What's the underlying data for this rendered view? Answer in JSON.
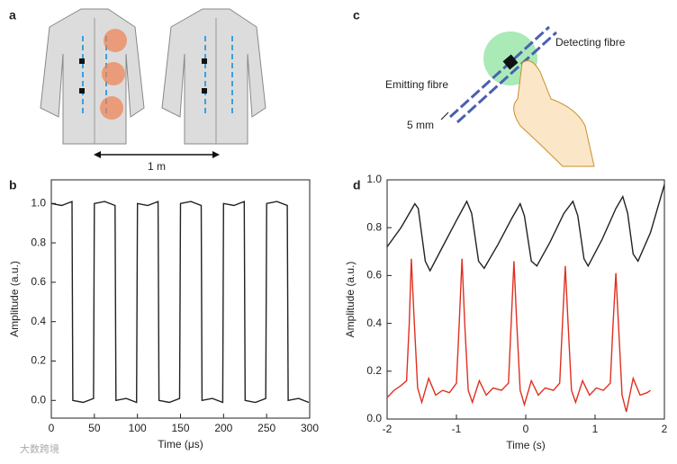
{
  "figure": {
    "panel_labels": [
      "a",
      "b",
      "c",
      "d"
    ],
    "scale_label": "1 m",
    "detecting_label": "Detecting fibre",
    "emitting_label": "Emitting fibre",
    "distance_label": "5 mm",
    "watermark": "大数跨境"
  },
  "chart_data": [
    {
      "type": "line",
      "xlabel": "Time (μs)",
      "ylabel": "Amplitude (a.u.)",
      "xlim": [
        0,
        300
      ],
      "xticks": [
        0,
        50,
        100,
        150,
        200,
        250,
        300
      ],
      "ylim": [
        -0.09,
        1.12
      ],
      "yticks": [
        {
          "value": 0,
          "label": "0.0"
        },
        0.2,
        0.4,
        0.6,
        0.8,
        {
          "value": 1,
          "label": "1.0"
        }
      ],
      "series": [
        {
          "color": "#222222",
          "x": [
            0,
            12,
            24,
            25,
            37,
            49,
            50,
            62,
            74,
            75,
            87,
            99,
            100,
            112,
            124,
            125,
            137,
            149,
            150,
            162,
            174,
            175,
            187,
            199,
            200,
            212,
            224,
            225,
            237,
            249,
            250,
            262,
            274,
            275,
            287,
            299
          ],
          "values": [
            1.0,
            0.99,
            1.01,
            0.0,
            -0.01,
            0.01,
            1.0,
            1.01,
            0.99,
            0.0,
            0.01,
            -0.01,
            1.0,
            0.99,
            1.01,
            0.0,
            -0.01,
            0.01,
            1.0,
            1.01,
            0.99,
            0.0,
            0.01,
            -0.01,
            1.0,
            0.99,
            1.01,
            0.0,
            -0.01,
            0.01,
            1.0,
            1.01,
            0.99,
            0.0,
            0.01,
            -0.01
          ]
        }
      ]
    },
    {
      "type": "line",
      "xlabel": "Time (s)",
      "ylabel": "Amplitude (a.u.)",
      "xlim": [
        -2,
        2
      ],
      "xticks": [
        -2,
        -1,
        0,
        1,
        2
      ],
      "ylim": [
        0,
        1
      ],
      "yticks": [
        {
          "value": 0,
          "label": "0.0"
        },
        0.2,
        0.4,
        0.6,
        0.8,
        {
          "value": 1,
          "label": "1.0"
        }
      ],
      "series": [
        {
          "color": "#222222",
          "x": [
            -2,
            -1.8,
            -1.6,
            -1.55,
            -1.45,
            -1.38,
            -1.2,
            -1.0,
            -0.85,
            -0.78,
            -0.68,
            -0.6,
            -0.4,
            -0.2,
            -0.08,
            -0.02,
            0.08,
            0.16,
            0.35,
            0.55,
            0.68,
            0.75,
            0.84,
            0.9,
            1.1,
            1.3,
            1.4,
            1.47,
            1.55,
            1.62,
            1.8,
            2.0
          ],
          "values": [
            0.72,
            0.8,
            0.9,
            0.88,
            0.66,
            0.62,
            0.72,
            0.83,
            0.91,
            0.86,
            0.66,
            0.63,
            0.73,
            0.84,
            0.9,
            0.85,
            0.66,
            0.64,
            0.74,
            0.86,
            0.91,
            0.85,
            0.67,
            0.64,
            0.75,
            0.88,
            0.93,
            0.86,
            0.69,
            0.66,
            0.78,
            0.98
          ]
        },
        {
          "color": "#e03020",
          "x": [
            -2,
            -1.9,
            -1.8,
            -1.72,
            -1.68,
            -1.65,
            -1.61,
            -1.56,
            -1.5,
            -1.4,
            -1.3,
            -1.2,
            -1.1,
            -1.0,
            -0.96,
            -0.92,
            -0.88,
            -0.83,
            -0.77,
            -0.67,
            -0.57,
            -0.47,
            -0.35,
            -0.25,
            -0.21,
            -0.17,
            -0.13,
            -0.08,
            -0.02,
            0.08,
            0.18,
            0.28,
            0.4,
            0.49,
            0.53,
            0.57,
            0.61,
            0.66,
            0.72,
            0.82,
            0.92,
            1.02,
            1.12,
            1.22,
            1.26,
            1.3,
            1.34,
            1.39,
            1.45,
            1.55,
            1.65,
            1.75,
            1.8
          ],
          "values": [
            0.09,
            0.12,
            0.14,
            0.16,
            0.4,
            0.67,
            0.42,
            0.13,
            0.07,
            0.17,
            0.1,
            0.12,
            0.11,
            0.15,
            0.4,
            0.67,
            0.4,
            0.12,
            0.07,
            0.16,
            0.1,
            0.13,
            0.12,
            0.15,
            0.4,
            0.66,
            0.4,
            0.12,
            0.06,
            0.16,
            0.1,
            0.13,
            0.12,
            0.15,
            0.4,
            0.64,
            0.4,
            0.12,
            0.07,
            0.16,
            0.1,
            0.13,
            0.12,
            0.15,
            0.4,
            0.61,
            0.38,
            0.1,
            0.03,
            0.17,
            0.1,
            0.11,
            0.12
          ]
        }
      ]
    }
  ]
}
